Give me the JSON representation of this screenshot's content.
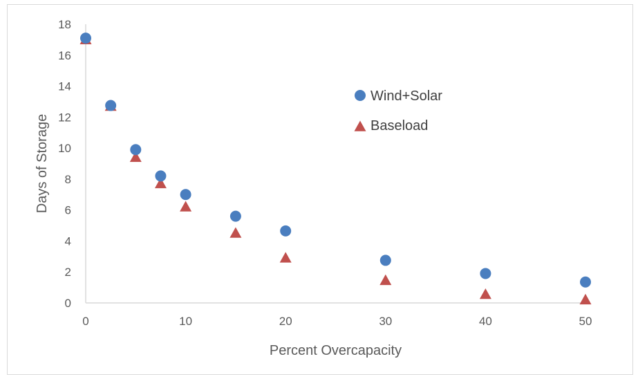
{
  "chart_data": {
    "type": "scatter",
    "xlabel": "Percent Overcapacity",
    "ylabel": "Days of Storage",
    "xlim": [
      0,
      50
    ],
    "ylim": [
      0,
      18
    ],
    "xticks": [
      0,
      10,
      20,
      30,
      40,
      50
    ],
    "yticks": [
      0,
      2,
      4,
      6,
      8,
      10,
      12,
      14,
      16,
      18
    ],
    "grid": false,
    "legend_position": "top-right-inside",
    "series": [
      {
        "name": "Wind+Solar",
        "marker": "circle",
        "color": "#4a7ebf",
        "points": [
          [
            0,
            17.1
          ],
          [
            2.5,
            12.75
          ],
          [
            5,
            9.9
          ],
          [
            7.5,
            8.2
          ],
          [
            10,
            7.0
          ],
          [
            15,
            5.6
          ],
          [
            20,
            4.65
          ],
          [
            30,
            2.75
          ],
          [
            40,
            1.9
          ],
          [
            50,
            1.35
          ]
        ]
      },
      {
        "name": "Baseload",
        "marker": "triangle",
        "color": "#c0504d",
        "points": [
          [
            0,
            17.1
          ],
          [
            2.5,
            12.8
          ],
          [
            5,
            9.5
          ],
          [
            7.5,
            7.8
          ],
          [
            10,
            6.3
          ],
          [
            15,
            4.6
          ],
          [
            20,
            3.0
          ],
          [
            30,
            1.55
          ],
          [
            40,
            0.65
          ],
          [
            50,
            0.3
          ]
        ]
      }
    ]
  }
}
